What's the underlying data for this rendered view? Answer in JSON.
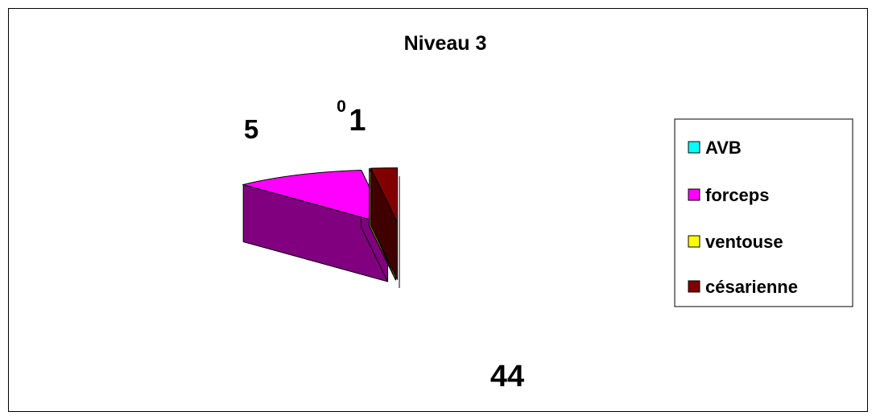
{
  "chart_data": {
    "type": "pie",
    "title": "Niveau 3",
    "categories": [
      "AVB",
      "forceps",
      "ventouse",
      "césarienne"
    ],
    "values": [
      44,
      5,
      0,
      1
    ],
    "data_labels": [
      "44",
      "5",
      "0",
      "1"
    ],
    "colors": {
      "AVB": "#00FFFF",
      "forceps": "#FF00FF",
      "ventouse": "#FFFF00",
      "césarienne": "#800000"
    },
    "style": "3d-exploded",
    "legend_position": "right"
  }
}
